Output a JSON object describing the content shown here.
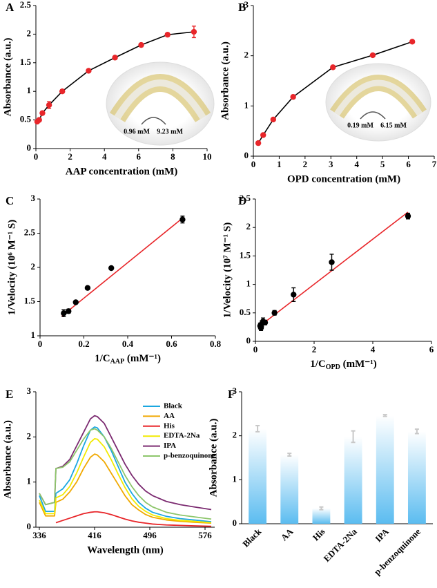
{
  "chart_data": [
    {
      "type": "scatter",
      "label": "A",
      "x_label": "AAP concentration (mM)",
      "y_label": "Absorbance (a.u.)",
      "xlim": [
        0,
        10
      ],
      "xticks": [
        0,
        2,
        4,
        6,
        8,
        10
      ],
      "ylim": [
        0,
        2.5
      ],
      "yticks": [
        0,
        0.5,
        1,
        1.5,
        2,
        2.5
      ],
      "annotations": [
        "0.96 mM",
        "9.23 mM"
      ],
      "series": [
        {
          "color": "#e8262a",
          "line_color": "#000000",
          "line": true,
          "markers": true,
          "x": [
            0.08,
            0.19,
            0.38,
            0.77,
            1.54,
            3.08,
            4.62,
            6.15,
            7.69,
            9.23
          ],
          "values": [
            0.47,
            0.5,
            0.62,
            0.76,
            1.0,
            1.36,
            1.59,
            1.81,
            1.99,
            2.04
          ],
          "errors": [
            0.02,
            0.02,
            0.03,
            0.06,
            0.03,
            0.02,
            0.02,
            0.03,
            0.03,
            0.1
          ]
        }
      ]
    },
    {
      "type": "scatter",
      "label": "B",
      "x_label": "OPD concentration (mM)",
      "y_label": "Absorbance (a.u.)",
      "xlim": [
        0,
        7
      ],
      "xticks": [
        0,
        1,
        2,
        3,
        4,
        5,
        6,
        7
      ],
      "ylim": [
        0,
        3
      ],
      "yticks": [
        0,
        1,
        2,
        3
      ],
      "annotations": [
        "0.19 mM",
        "6.15 mM"
      ],
      "series": [
        {
          "color": "#e8262a",
          "line_color": "#000000",
          "line": true,
          "markers": true,
          "x": [
            0.19,
            0.38,
            0.77,
            1.54,
            3.08,
            4.62,
            6.15
          ],
          "values": [
            0.26,
            0.42,
            0.73,
            1.18,
            1.77,
            2.01,
            2.28
          ],
          "errors": [
            0.02,
            0.02,
            0.02,
            0.02,
            0.02,
            0.02,
            0.02
          ]
        }
      ]
    },
    {
      "type": "scatter",
      "label": "C",
      "x_label": {
        "text": "1/C",
        "sub": "AAP",
        "tail": " (mM⁻¹)"
      },
      "y_label": "1/Velocity (10⁶ M⁻¹ S)",
      "xlim": [
        0,
        0.8
      ],
      "xticks": [
        0,
        0.2,
        0.4,
        0.6,
        0.8
      ],
      "ylim": [
        1,
        3
      ],
      "yticks": [
        1,
        1.5,
        2,
        2.5,
        3
      ],
      "series": [
        {
          "color": "#e8262a",
          "line_color": "#e8262a",
          "line": true,
          "markers": false,
          "x": [
            0.1,
            0.65
          ],
          "values": [
            1.29,
            2.72
          ]
        },
        {
          "color": "#000000",
          "line": false,
          "markers": true,
          "x": [
            0.108,
            0.13,
            0.163,
            0.217,
            0.325,
            0.65
          ],
          "values": [
            1.33,
            1.36,
            1.49,
            1.7,
            1.99,
            2.7
          ],
          "errors": [
            0.05,
            0.03,
            0.02,
            0.02,
            0.02,
            0.05
          ]
        }
      ]
    },
    {
      "type": "scatter",
      "label": "D",
      "x_label": {
        "text": "1/C",
        "sub": "OPD",
        "tail": " (mM⁻¹)"
      },
      "y_label": "1/Velocity (10⁷ M⁻¹ S)",
      "xlim": [
        0,
        6
      ],
      "xticks": [
        0,
        2,
        4,
        6
      ],
      "ylim": [
        0,
        2.5
      ],
      "yticks": [
        0,
        0.5,
        1,
        1.5,
        2,
        2.5
      ],
      "series": [
        {
          "color": "#e8262a",
          "line_color": "#e8262a",
          "line": true,
          "markers": false,
          "x": [
            0.1,
            5.2
          ],
          "values": [
            0.25,
            2.27
          ]
        },
        {
          "color": "#000000",
          "line": false,
          "markers": true,
          "x": [
            0.16,
            0.19,
            0.22,
            0.26,
            0.33,
            0.65,
            1.3,
            2.6,
            5.2
          ],
          "values": [
            0.27,
            0.24,
            0.31,
            0.35,
            0.33,
            0.5,
            0.82,
            1.39,
            2.2
          ],
          "errors": [
            0.05,
            0.05,
            0.05,
            0.06,
            0.04,
            0.04,
            0.12,
            0.14,
            0.05
          ]
        }
      ]
    },
    {
      "type": "line",
      "label": "E",
      "x_label": "Wavelength (nm)",
      "y_label": "Absorbance (a.u.)",
      "xlim": [
        331,
        590
      ],
      "xticks": [
        336,
        416,
        496,
        576
      ],
      "ylim": [
        0,
        3
      ],
      "yticks": [
        0,
        1,
        2,
        3
      ],
      "legend": "upper right",
      "x": [
        336,
        345,
        358,
        360,
        370,
        380,
        390,
        400,
        410,
        416,
        420,
        430,
        440,
        450,
        460,
        470,
        480,
        490,
        500,
        520,
        540,
        560,
        585
      ],
      "series": [
        {
          "name": "Black",
          "color": "#1aa7e0",
          "values": [
            0.7,
            0.35,
            0.35,
            0.75,
            0.85,
            1.05,
            1.4,
            1.8,
            2.15,
            2.22,
            2.2,
            2.0,
            1.7,
            1.35,
            1.0,
            0.75,
            0.55,
            0.42,
            0.33,
            0.24,
            0.19,
            0.16,
            0.12
          ]
        },
        {
          "name": "AA",
          "color": "#f0a800",
          "values": [
            0.55,
            0.25,
            0.25,
            0.55,
            0.62,
            0.78,
            1.0,
            1.3,
            1.55,
            1.62,
            1.6,
            1.45,
            1.2,
            0.95,
            0.7,
            0.5,
            0.38,
            0.28,
            0.22,
            0.16,
            0.13,
            0.11,
            0.09
          ]
        },
        {
          "name": "His",
          "color": "#e8262a",
          "values": [
            null,
            null,
            null,
            0.1,
            0.15,
            0.2,
            0.25,
            0.3,
            0.33,
            0.34,
            0.34,
            0.32,
            0.28,
            0.23,
            0.18,
            0.14,
            0.11,
            0.09,
            0.07,
            0.05,
            0.04,
            0.03,
            0.02
          ]
        },
        {
          "name": "EDTA-2Na",
          "color": "#f2ea00",
          "values": [
            0.6,
            0.3,
            0.3,
            0.65,
            0.72,
            0.9,
            1.2,
            1.55,
            1.88,
            1.96,
            1.95,
            1.78,
            1.5,
            1.18,
            0.88,
            0.63,
            0.46,
            0.35,
            0.27,
            0.19,
            0.15,
            0.13,
            0.1
          ]
        },
        {
          "name": "IPA",
          "color": "#7b2a70",
          "values": [
            0.75,
            0.5,
            0.55,
            1.3,
            1.35,
            1.5,
            1.8,
            2.1,
            2.4,
            2.47,
            2.45,
            2.3,
            2.0,
            1.7,
            1.4,
            1.15,
            0.95,
            0.8,
            0.7,
            0.57,
            0.5,
            0.45,
            0.39
          ]
        },
        {
          "name": "p-benzoquinone",
          "color": "#8dc66b",
          "values": [
            0.75,
            0.5,
            0.55,
            1.3,
            1.33,
            1.45,
            1.7,
            1.95,
            2.15,
            2.18,
            2.15,
            2.0,
            1.75,
            1.45,
            1.15,
            0.9,
            0.7,
            0.55,
            0.45,
            0.33,
            0.27,
            0.23,
            0.18
          ]
        }
      ]
    },
    {
      "type": "bar",
      "label": "F",
      "y_label": "Absorbance (a.u.)",
      "color": "#5bbcf0",
      "error_color": "#c8c8c8",
      "ylim": [
        0,
        3
      ],
      "yticks": [
        0,
        1,
        2,
        3
      ],
      "categories": [
        "Black",
        "AA",
        "His",
        "EDTA-2Na",
        "IPA",
        "p-benzoquinone"
      ],
      "values": [
        2.16,
        1.57,
        0.35,
        1.98,
        2.46,
        2.1
      ],
      "errors": [
        0.07,
        0.03,
        0.03,
        0.13,
        0.02,
        0.05
      ]
    }
  ]
}
